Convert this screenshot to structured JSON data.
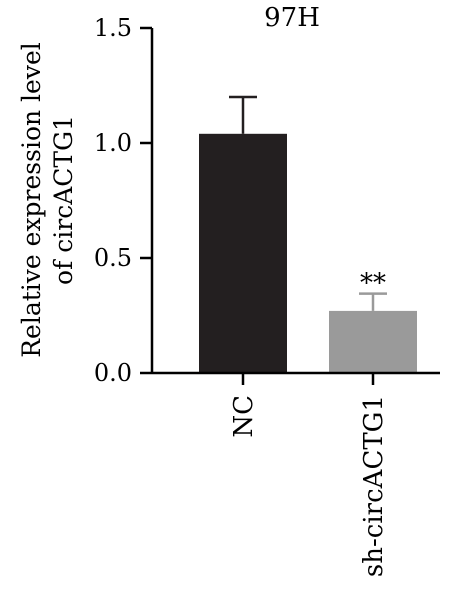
{
  "chart_data": {
    "type": "bar",
    "title": "97H",
    "ylabel_lines": [
      "Relative expression level",
      "of circACTG1"
    ],
    "xlabel": "",
    "categories": [
      "NC",
      "sh-circACTG1"
    ],
    "values": [
      1.04,
      0.27
    ],
    "errors": [
      0.16,
      0.075
    ],
    "annotations": [
      "",
      "**"
    ],
    "ylim": [
      0,
      1.5
    ],
    "yticks": [
      0.0,
      0.5,
      1.0,
      1.5
    ],
    "ytick_labels": [
      "0.0",
      "0.5",
      "1.0",
      "1.5"
    ],
    "grid": false,
    "legend": "none",
    "bar_colors": [
      "#231f20",
      "#9a9a9a"
    ],
    "axis_color": "#000000"
  }
}
